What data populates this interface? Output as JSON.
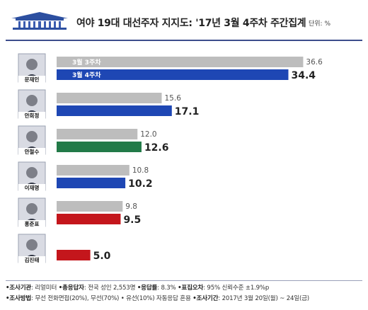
{
  "header": {
    "title": "여야 19대 대선주자 지지도: '17년 3월 4주차 주간집계",
    "unit": "단위: %"
  },
  "colors": {
    "prev_week": "#bdbdbd",
    "moon": "#1e47b4",
    "ahn_hj": "#1e47b4",
    "ahn_cs": "#227a48",
    "lee": "#1e47b4",
    "hong": "#c4161c",
    "kim": "#c4161c",
    "rule": "#3d4d8c"
  },
  "chart_data": {
    "type": "bar",
    "orientation": "horizontal",
    "categories": [
      "문재인",
      "안희정",
      "안철수",
      "이재명",
      "홍준표",
      "김진태"
    ],
    "series": [
      {
        "name": "3월 3주차",
        "values": [
          36.6,
          15.6,
          12.0,
          10.8,
          9.8,
          null
        ]
      },
      {
        "name": "3월 4주차",
        "values": [
          34.4,
          17.1,
          12.6,
          10.2,
          9.5,
          5.0
        ]
      }
    ],
    "value_labels": [
      [
        "36.6",
        "15.6",
        "12.0",
        "10.8",
        "9.8",
        ""
      ],
      [
        "34.4",
        "17.1",
        "12.6",
        "10.2",
        "9.5",
        "5.0"
      ]
    ],
    "legend": "in-bar labels on first row",
    "xlim": [
      0,
      40
    ],
    "grid": false
  },
  "footer": {
    "line1": [
      {
        "key": "•조사기관",
        "value": ": 리얼미터"
      },
      {
        "key": "•총응답자",
        "value": ": 전국 성인 2,553명"
      },
      {
        "key": "•응답률",
        "value": ": 8.3%"
      },
      {
        "key": "•표집오차",
        "value": ": 95% 신뢰수준 ±1.9%p"
      }
    ],
    "line2": [
      {
        "key": "•조사방법",
        "value": ": 무선 전화면접(20%), 무선(70%) • 유선(10%) 자동응답 혼용"
      },
      {
        "key": "•조사기간",
        "value": ": 2017년 3월 20일(월) ~ 24일(금)"
      }
    ]
  }
}
